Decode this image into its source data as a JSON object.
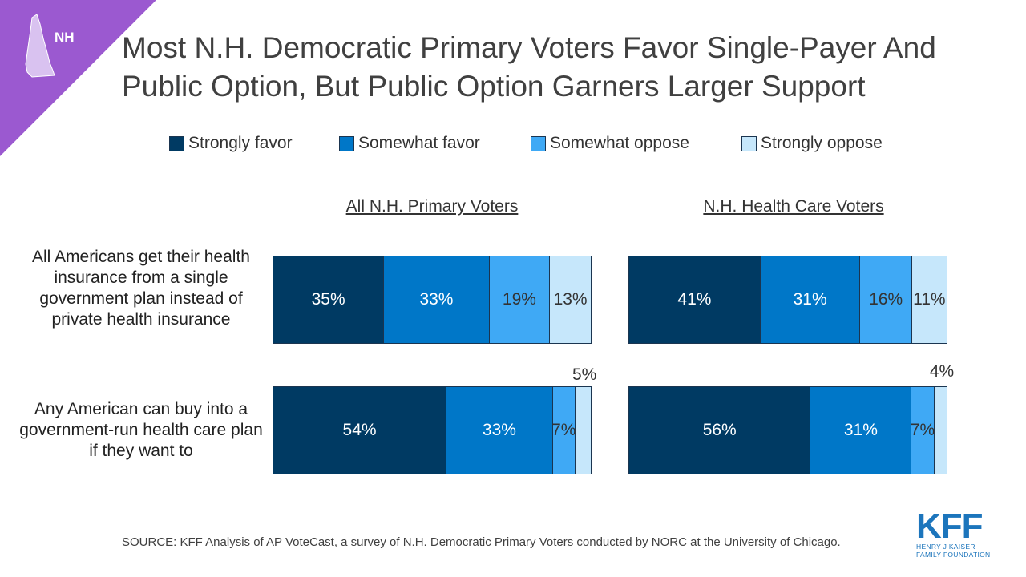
{
  "badge": {
    "text": "NH",
    "icon": "new-hampshire-state-icon",
    "color": "#9b59d0"
  },
  "title": "Most N.H. Democratic Primary Voters Favor Single-Payer And Public Option, But Public Option Garners Larger Support",
  "legend": [
    {
      "label": "Strongly favor",
      "color": "#003a63"
    },
    {
      "label": "Somewhat favor",
      "color": "#0077c8"
    },
    {
      "label": "Somewhat oppose",
      "color": "#3fa9f5"
    },
    {
      "label": "Strongly oppose",
      "color": "#c6e7fb"
    }
  ],
  "chart_data": {
    "type": "bar",
    "orientation": "horizontal",
    "stacked": true,
    "panels": [
      "All N.H. Primary Voters",
      "N.H. Health Care Voters"
    ],
    "categories": [
      "All Americans get their health insurance from a single government plan instead of private health insurance",
      "Any American can buy into a government-run health care plan if they want to"
    ],
    "series_names": [
      "Strongly favor",
      "Somewhat favor",
      "Somewhat oppose",
      "Strongly oppose"
    ],
    "values": [
      [
        [
          35,
          33,
          19,
          13
        ],
        [
          54,
          33,
          7,
          5
        ]
      ],
      [
        [
          41,
          31,
          16,
          11
        ],
        [
          56,
          31,
          7,
          4
        ]
      ]
    ],
    "unit": "%",
    "xlim": [
      0,
      100
    ],
    "legend_position": "top"
  },
  "source": "SOURCE: KFF Analysis of AP VoteCast, a survey of N.H. Democratic Primary Voters conducted by NORC at the University  of Chicago.",
  "logo": {
    "main": "KFF",
    "line1": "HENRY J KAISER",
    "line2": "FAMILY FOUNDATION"
  }
}
